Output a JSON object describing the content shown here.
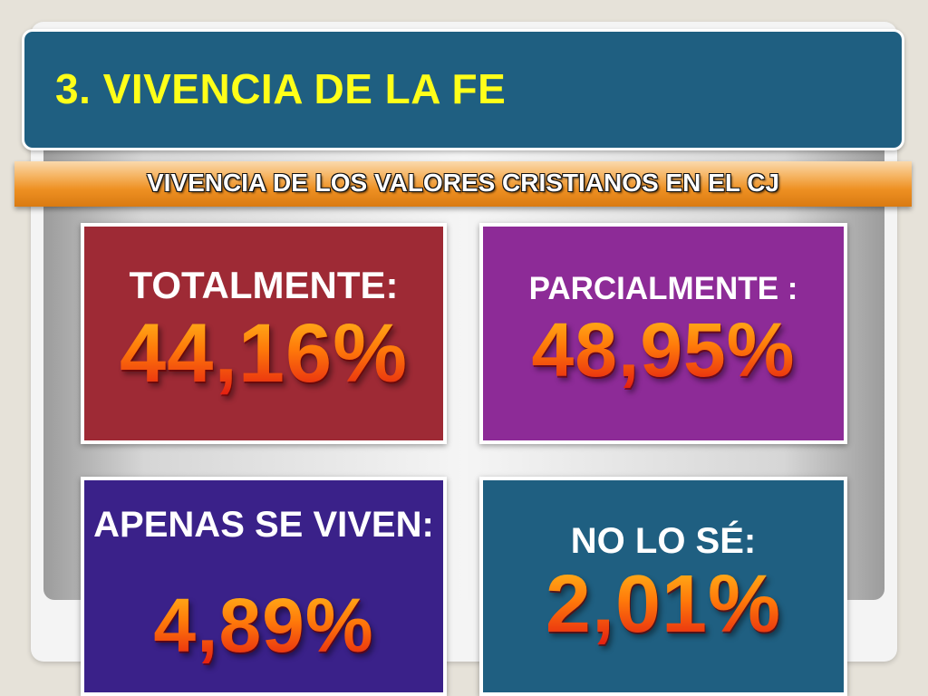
{
  "slide": {
    "title": "3. VIVENCIA DE LA FE",
    "subtitle": "VIVENCIA DE LOS VALORES CRISTIANOS EN EL CJ"
  },
  "cards": [
    {
      "label": "TOTALMENTE:",
      "value": "44,16%"
    },
    {
      "label": "PARCIALMENTE :",
      "value": "48,95%"
    },
    {
      "label": "APENAS SE VIVEN:",
      "value": "4,89%"
    },
    {
      "label": "NO LO SÉ:",
      "value": "2,01%"
    }
  ],
  "colors": {
    "title_background": "#1f5f81",
    "title_text": "#ffff19",
    "banner_orange": "#ee9022",
    "card_totalmente": "#9e2a35",
    "card_parcialmente": "#8d2b97",
    "card_apenas": "#3a2189",
    "card_no_lo_se": "#1f5f81",
    "value_gradient_top": "#ffc21e",
    "value_gradient_bottom": "#e01212"
  }
}
